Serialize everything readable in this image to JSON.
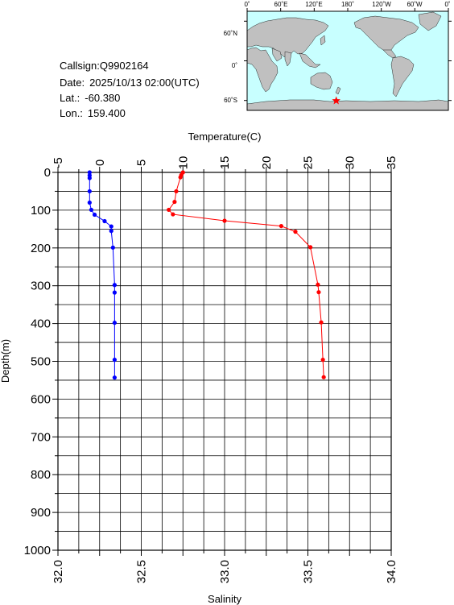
{
  "info": {
    "callsign_label": "Callsign:",
    "callsign": "Q9902164",
    "date_label": "Date:",
    "date": "2025/10/13 02:00(UTC)",
    "lat_label": "Lat.:",
    "lat": "-60.380",
    "lon_label": "Lon.:",
    "lon": "159.400"
  },
  "map": {
    "top_labels": [
      "0˚",
      "60˚E",
      "120˚E",
      "180˚",
      "120˚W",
      "60˚W",
      "0˚"
    ],
    "side_labels": [
      "60˚N",
      "0˚",
      "60˚S"
    ],
    "ocean_color": "#c8ffff",
    "land_color": "#c0c0c0",
    "marker_color": "#ff0000",
    "marker_lat": -60.38,
    "marker_lon": 159.4
  },
  "chart_data": {
    "type": "line",
    "title": "",
    "ylabel": "Depth(m)",
    "ylim": [
      1000,
      0
    ],
    "yticks": [
      0,
      100,
      200,
      300,
      400,
      500,
      600,
      700,
      800,
      900,
      1000
    ],
    "grid": true,
    "top_axis": {
      "label": "Temperature(C)",
      "lim": [
        -5,
        35
      ],
      "ticks": [
        -5,
        0,
        5,
        10,
        15,
        20,
        25,
        30,
        35
      ]
    },
    "bottom_axis": {
      "label": "Salinity",
      "lim": [
        32.0,
        34.0
      ],
      "ticks": [
        "32.0",
        "32.5",
        "33.0",
        "33.5",
        "34.0"
      ]
    },
    "series": [
      {
        "axis": "top",
        "color": "#ff0000",
        "points": [
          [
            10.0,
            0
          ],
          [
            9.8,
            7
          ],
          [
            9.7,
            13
          ],
          [
            9.2,
            50
          ],
          [
            9.0,
            78
          ],
          [
            8.3,
            99
          ],
          [
            8.8,
            111
          ],
          [
            15.0,
            128
          ],
          [
            21.8,
            142
          ],
          [
            23.5,
            157
          ],
          [
            25.3,
            198
          ],
          [
            26.2,
            297
          ],
          [
            26.3,
            317
          ],
          [
            26.6,
            397
          ],
          [
            26.8,
            496
          ],
          [
            26.9,
            542
          ]
        ]
      },
      {
        "axis": "bottom",
        "color": "#0000ff",
        "points": [
          [
            32.19,
            0
          ],
          [
            32.19,
            8
          ],
          [
            32.19,
            15
          ],
          [
            32.19,
            50
          ],
          [
            32.19,
            80
          ],
          [
            32.2,
            99
          ],
          [
            32.22,
            112
          ],
          [
            32.28,
            129
          ],
          [
            32.32,
            143
          ],
          [
            32.32,
            155
          ],
          [
            32.33,
            199
          ],
          [
            32.34,
            298
          ],
          [
            32.34,
            318
          ],
          [
            32.34,
            398
          ],
          [
            32.34,
            496
          ],
          [
            32.34,
            543
          ]
        ]
      }
    ]
  }
}
